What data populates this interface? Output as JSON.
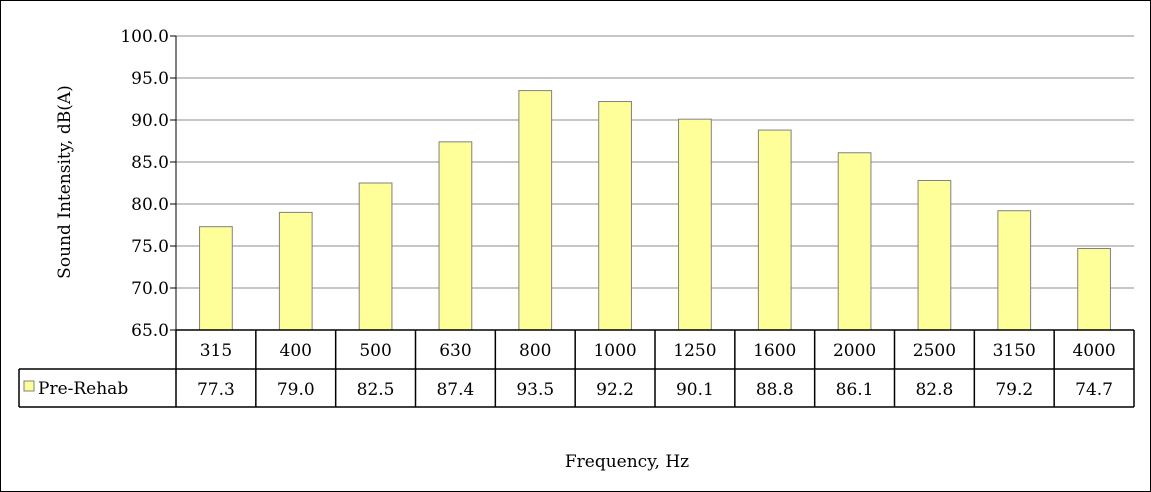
{
  "chart_data": {
    "type": "bar",
    "title": "",
    "xlabel": "Frequency, Hz",
    "ylabel": "Sound Intensity, dB(A)",
    "ylim": [
      65,
      100
    ],
    "ytick_step": 5,
    "ytick_labels": [
      "65.0",
      "70.0",
      "75.0",
      "80.0",
      "85.0",
      "90.0",
      "95.0",
      "100.0"
    ],
    "grid": true,
    "legend_position": "data-table",
    "bar_color": "#FFFF99",
    "bar_edge_color": "#808080",
    "categories": [
      "315",
      "400",
      "500",
      "630",
      "800",
      "1000",
      "1250",
      "1600",
      "2000",
      "2500",
      "3150",
      "4000"
    ],
    "series": [
      {
        "name": "Pre-Rehab",
        "values": [
          77.3,
          79.0,
          82.5,
          87.4,
          93.5,
          92.2,
          90.1,
          88.8,
          86.1,
          82.8,
          79.2,
          74.7
        ],
        "labels": [
          "77.3",
          "79.0",
          "82.5",
          "87.4",
          "93.5",
          "92.2",
          "90.1",
          "88.8",
          "86.1",
          "82.8",
          "79.2",
          "74.7"
        ]
      }
    ]
  }
}
